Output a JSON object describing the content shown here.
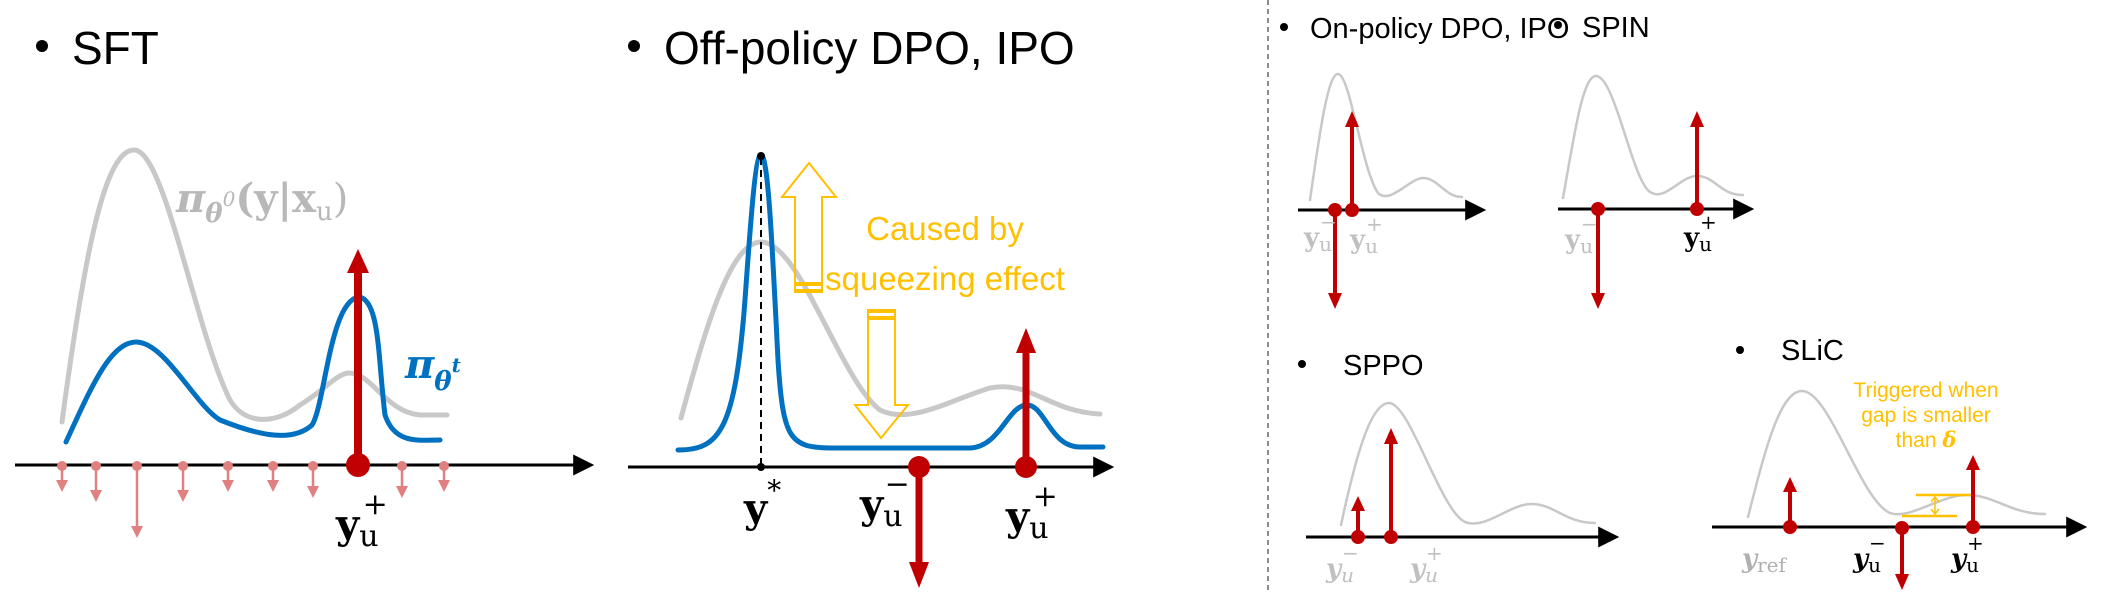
{
  "colors": {
    "initial_policy": "#c8c8c8",
    "current_policy": "#0070c0",
    "gradient": "#c00000",
    "minor_gradient": "#e08080",
    "annotation": "#ffc000",
    "divider": "#666666"
  },
  "icons": {
    "bullet": "bullet-dot",
    "axis_arrow": "arrow-right",
    "gradient_up": "arrow-up",
    "gradient_down": "arrow-down",
    "squeeze_up": "hollow-arrow-up",
    "squeeze_down": "hollow-arrow-down"
  },
  "sft": {
    "title": "SFT",
    "pi0_label": {
      "pi": "π",
      "sub": "θ",
      "sup": "0",
      "args": "(y|x",
      "args_sub": "u",
      "close": ")"
    },
    "pit_label": {
      "pi": "π",
      "sub": "θ",
      "sup": "t"
    },
    "y_plus": {
      "y": "y",
      "sub": "u",
      "sup": "+"
    }
  },
  "offpolicy": {
    "title": "Off-policy DPO, IPO",
    "note_line1": "Caused by",
    "note_line2": "squeezing effect",
    "y_star": {
      "y": "y",
      "sup": "*"
    },
    "y_minus": {
      "y": "y",
      "sub": "u",
      "sup": "−"
    },
    "y_plus": {
      "y": "y",
      "sub": "u",
      "sup": "+"
    }
  },
  "onpolicy": {
    "title": "On-policy DPO, IPO",
    "y_minus": {
      "y": "y",
      "sub": "u",
      "sup": "−"
    },
    "y_plus": {
      "y": "y",
      "sub": "u",
      "sup": "+"
    }
  },
  "spin": {
    "title": "SPIN",
    "y_minus": {
      "y": "y",
      "sub": "u",
      "sup": "−"
    },
    "y_plus": {
      "y": "y",
      "sub": "u",
      "sup": "+"
    }
  },
  "sppo": {
    "title": "SPPO",
    "y_minus": {
      "y": "y",
      "sub": "u",
      "sup": "−"
    },
    "y_plus": {
      "y": "y",
      "sub": "u",
      "sup": "+"
    }
  },
  "slic": {
    "title": "SLiC",
    "note_line1": "Triggered when",
    "note_line2": "gap is smaller",
    "note_line3": "than ",
    "note_delta": "δ",
    "y_ref": {
      "y": "y",
      "sub": "ref"
    },
    "y_minus": {
      "y": "y",
      "sub": "u",
      "sup": "−"
    },
    "y_plus": {
      "y": "y",
      "sub": "u",
      "sup": "+"
    }
  }
}
